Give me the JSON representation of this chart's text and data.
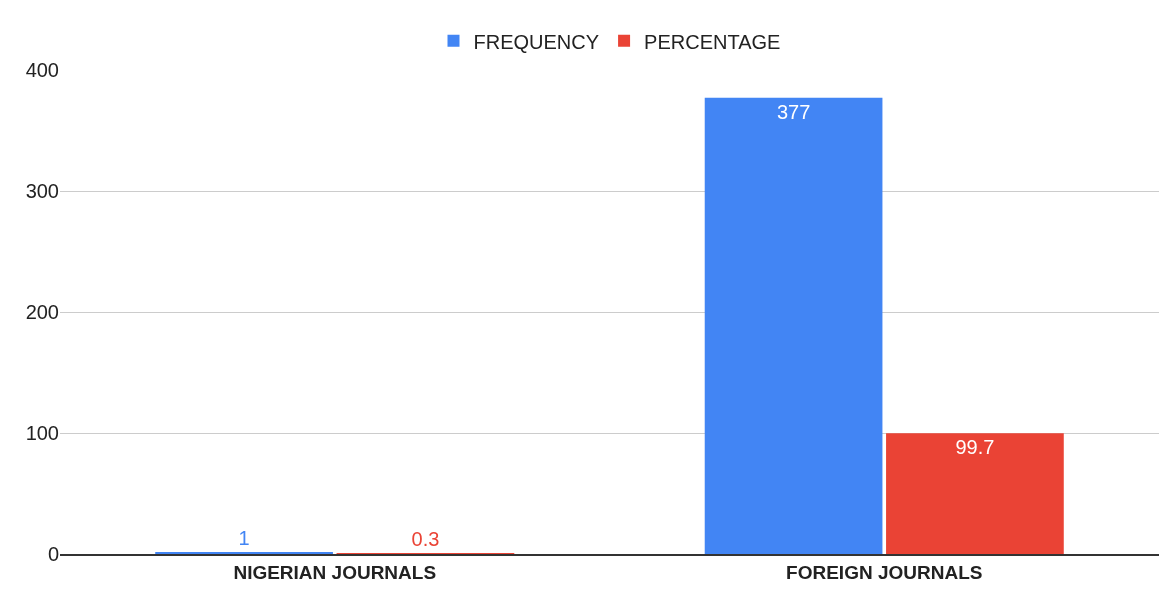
{
  "chart_data": {
    "type": "bar",
    "categories": [
      "NIGERIAN JOURNALS",
      "FOREIGN JOURNALS"
    ],
    "series": [
      {
        "name": "FREQUENCY",
        "color": "#4285f4",
        "values": [
          1,
          377
        ]
      },
      {
        "name": "PERCENTAGE",
        "color": "#ea4335",
        "values": [
          0.3,
          99.7
        ]
      }
    ],
    "ylim": [
      0,
      400
    ],
    "yticks": [
      0,
      100,
      200,
      300,
      400
    ],
    "grid": "y",
    "legend": "top",
    "data_labels": true
  }
}
